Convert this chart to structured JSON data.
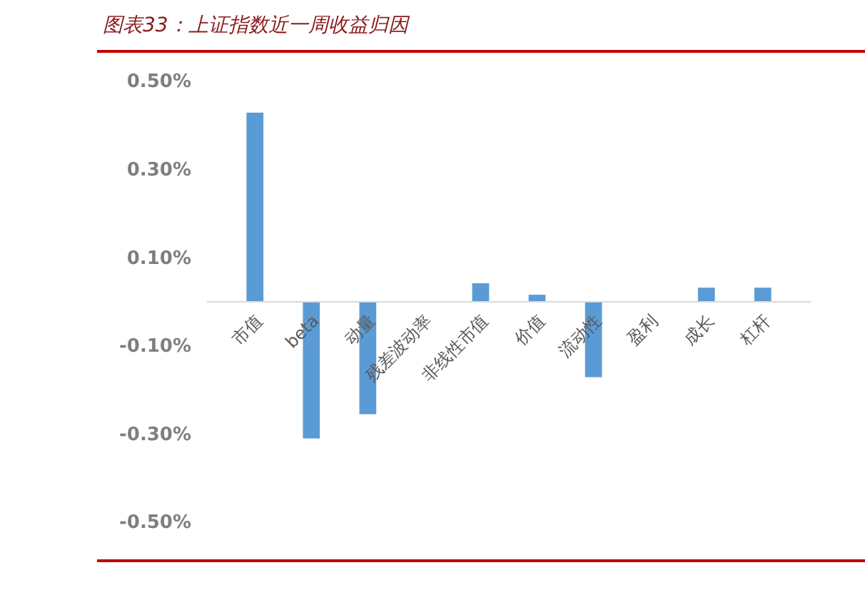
{
  "chart_data": {
    "type": "bar",
    "title": "图表33：上证指数近一周收益归因",
    "categories": [
      "市值",
      "beta",
      "动量",
      "残差波动率",
      "非线性市值",
      "价值",
      "流动性",
      "盈利",
      "成长",
      "杠杆"
    ],
    "values": [
      0.429,
      -0.31,
      -0.255,
      0,
      0.042,
      0.016,
      -0.171,
      0,
      0.032,
      0.032
    ],
    "color": "#5b9bd5",
    "ylim": [
      -0.5,
      0.5
    ],
    "yticks": [
      {
        "value": -0.5,
        "label": "-0.50%"
      },
      {
        "value": -0.3,
        "label": "-0.30%"
      },
      {
        "value": -0.1,
        "label": "-0.10%"
      },
      {
        "value": 0.1,
        "label": "0.10%"
      },
      {
        "value": 0.3,
        "label": "0.30%"
      },
      {
        "value": 0.5,
        "label": "0.50%"
      }
    ],
    "grid": false
  }
}
